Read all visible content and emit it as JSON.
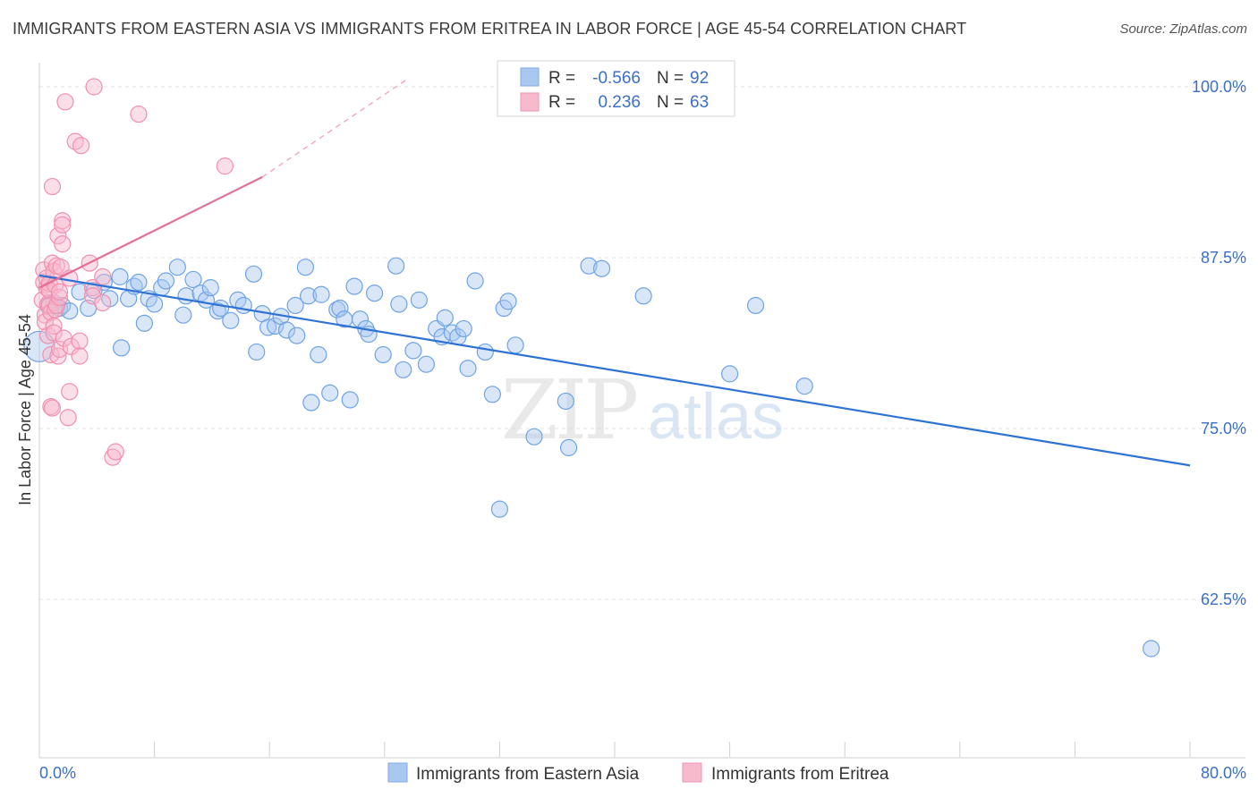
{
  "title": "IMMIGRANTS FROM EASTERN ASIA VS IMMIGRANTS FROM ERITREA IN LABOR FORCE | AGE 45-54 CORRELATION CHART",
  "source": "Source: ZipAtlas.com",
  "watermark": {
    "zip": "ZIP",
    "atlas": "atlas"
  },
  "legend": {
    "rows": [
      {
        "r_label": "R =",
        "r_value": "-0.566",
        "n_label": "N =",
        "n_value": "92",
        "color": "#a9c8f0"
      },
      {
        "r_label": "R =",
        "r_value": "0.236",
        "n_label": "N =",
        "n_value": "63",
        "color": "#f7b9cc"
      }
    ]
  },
  "chart_data": {
    "type": "scatter",
    "title": "IMMIGRANTS FROM EASTERN ASIA VS IMMIGRANTS FROM ERITREA IN LABOR FORCE | AGE 45-54 CORRELATION CHART",
    "xlabel": "",
    "ylabel": "In Labor Force | Age 45-54",
    "xlim": [
      0,
      80
    ],
    "ylim": [
      52.5,
      102.5
    ],
    "x_tick_labels": [
      "0.0%",
      "80.0%"
    ],
    "y_ticks": [
      62.5,
      75.0,
      87.5,
      100.0
    ],
    "y_tick_labels": [
      "62.5%",
      "75.0%",
      "87.5%",
      "100.0%"
    ],
    "grid": true,
    "legend_position": "top-center",
    "series": [
      {
        "name": "Immigrants from Eastern Asia",
        "color": "#6fa3e6",
        "line_color": "#2f72d6",
        "trend": {
          "x": [
            0.0,
            80.0
          ],
          "y": [
            86.2,
            72.3
          ]
        },
        "points": [
          [
            0.0,
            81.0
          ],
          [
            0.6,
            84.0
          ],
          [
            1.0,
            84.2
          ],
          [
            1.4,
            83.8
          ],
          [
            1.6,
            84.0
          ],
          [
            2.1,
            83.6
          ],
          [
            2.8,
            85.0
          ],
          [
            3.4,
            83.8
          ],
          [
            3.8,
            85.1
          ],
          [
            4.5,
            85.7
          ],
          [
            4.9,
            84.5
          ],
          [
            5.6,
            86.1
          ],
          [
            5.7,
            80.9
          ],
          [
            6.2,
            84.5
          ],
          [
            6.6,
            85.4
          ],
          [
            6.9,
            85.7
          ],
          [
            7.3,
            82.7
          ],
          [
            7.6,
            84.5
          ],
          [
            8.0,
            84.1
          ],
          [
            8.5,
            85.3
          ],
          [
            8.8,
            85.8
          ],
          [
            9.6,
            86.8
          ],
          [
            10.0,
            83.3
          ],
          [
            10.2,
            84.7
          ],
          [
            10.7,
            85.9
          ],
          [
            11.2,
            84.9
          ],
          [
            11.6,
            84.4
          ],
          [
            11.9,
            85.3
          ],
          [
            12.4,
            83.6
          ],
          [
            12.6,
            83.8
          ],
          [
            13.3,
            82.9
          ],
          [
            13.8,
            84.4
          ],
          [
            14.2,
            84.0
          ],
          [
            14.9,
            86.3
          ],
          [
            15.1,
            80.6
          ],
          [
            15.5,
            83.4
          ],
          [
            15.9,
            82.4
          ],
          [
            16.4,
            82.5
          ],
          [
            16.8,
            83.2
          ],
          [
            17.2,
            82.2
          ],
          [
            17.8,
            84.0
          ],
          [
            17.9,
            81.8
          ],
          [
            18.5,
            86.8
          ],
          [
            18.7,
            84.7
          ],
          [
            18.9,
            76.9
          ],
          [
            19.4,
            80.4
          ],
          [
            19.6,
            84.8
          ],
          [
            20.2,
            77.6
          ],
          [
            20.7,
            83.7
          ],
          [
            20.9,
            83.8
          ],
          [
            21.2,
            83.0
          ],
          [
            21.6,
            77.1
          ],
          [
            21.9,
            85.4
          ],
          [
            22.3,
            83.0
          ],
          [
            22.7,
            82.3
          ],
          [
            22.9,
            81.9
          ],
          [
            23.3,
            84.9
          ],
          [
            23.9,
            80.4
          ],
          [
            24.8,
            86.9
          ],
          [
            25.0,
            84.1
          ],
          [
            25.3,
            79.3
          ],
          [
            26.0,
            80.7
          ],
          [
            26.4,
            84.4
          ],
          [
            26.9,
            79.7
          ],
          [
            27.6,
            82.3
          ],
          [
            28.0,
            81.7
          ],
          [
            28.2,
            83.1
          ],
          [
            28.7,
            82.0
          ],
          [
            29.1,
            81.7
          ],
          [
            29.5,
            82.3
          ],
          [
            29.8,
            79.4
          ],
          [
            30.3,
            85.8
          ],
          [
            31.0,
            80.6
          ],
          [
            31.5,
            77.5
          ],
          [
            32.0,
            69.1
          ],
          [
            32.3,
            83.8
          ],
          [
            32.6,
            84.3
          ],
          [
            33.1,
            81.1
          ],
          [
            34.4,
            74.4
          ],
          [
            36.6,
            77.0
          ],
          [
            36.8,
            73.6
          ],
          [
            38.2,
            86.9
          ],
          [
            39.1,
            86.7
          ],
          [
            42.0,
            84.7
          ],
          [
            48.0,
            79.0
          ],
          [
            49.8,
            84.0
          ],
          [
            53.2,
            78.1
          ],
          [
            77.3,
            58.9
          ]
        ]
      },
      {
        "name": "Immigrants from Eritrea",
        "color": "#f18fae",
        "line_color": "#e36f96",
        "trend": {
          "x": [
            0.0,
            15.5
          ],
          "y": [
            85.3,
            93.4
          ]
        },
        "trend_extension": {
          "x": [
            15.5,
            25.5
          ],
          "y": [
            93.4,
            100.5
          ]
        },
        "points": [
          [
            0.2,
            84.4
          ],
          [
            0.3,
            85.7
          ],
          [
            0.3,
            86.6
          ],
          [
            0.4,
            83.3
          ],
          [
            0.4,
            82.8
          ],
          [
            0.5,
            85.3
          ],
          [
            0.5,
            86.0
          ],
          [
            0.6,
            84.1
          ],
          [
            0.6,
            81.8
          ],
          [
            0.7,
            85.6
          ],
          [
            0.7,
            85.1
          ],
          [
            0.7,
            84.0
          ],
          [
            0.8,
            83.5
          ],
          [
            0.8,
            80.4
          ],
          [
            0.8,
            76.6
          ],
          [
            0.9,
            76.5
          ],
          [
            0.9,
            92.7
          ],
          [
            0.9,
            87.1
          ],
          [
            1.0,
            86.5
          ],
          [
            1.0,
            82.5
          ],
          [
            1.0,
            82.0
          ],
          [
            1.1,
            83.7
          ],
          [
            1.1,
            85.5
          ],
          [
            1.2,
            84.0
          ],
          [
            1.2,
            86.9
          ],
          [
            1.3,
            89.1
          ],
          [
            1.3,
            80.3
          ],
          [
            1.4,
            80.8
          ],
          [
            1.4,
            84.6
          ],
          [
            1.4,
            85.0
          ],
          [
            1.5,
            86.8
          ],
          [
            1.6,
            90.2
          ],
          [
            1.6,
            89.9
          ],
          [
            1.6,
            88.5
          ],
          [
            1.7,
            81.6
          ],
          [
            1.8,
            98.9
          ],
          [
            2.0,
            75.8
          ],
          [
            2.1,
            77.7
          ],
          [
            2.1,
            86.0
          ],
          [
            2.2,
            81.0
          ],
          [
            2.5,
            96.0
          ],
          [
            2.8,
            81.4
          ],
          [
            2.8,
            80.3
          ],
          [
            2.9,
            95.7
          ],
          [
            3.5,
            87.1
          ],
          [
            3.7,
            85.3
          ],
          [
            3.7,
            84.7
          ],
          [
            3.8,
            100.0
          ],
          [
            4.4,
            84.2
          ],
          [
            4.4,
            86.1
          ],
          [
            5.1,
            72.9
          ],
          [
            5.3,
            73.3
          ],
          [
            6.9,
            98.0
          ],
          [
            12.9,
            94.2
          ]
        ]
      }
    ]
  },
  "bottom_legend": [
    {
      "label": "Immigrants from Eastern Asia",
      "color": "#a9c8f0"
    },
    {
      "label": "Immigrants from Eritrea",
      "color": "#f7b9cc"
    }
  ]
}
